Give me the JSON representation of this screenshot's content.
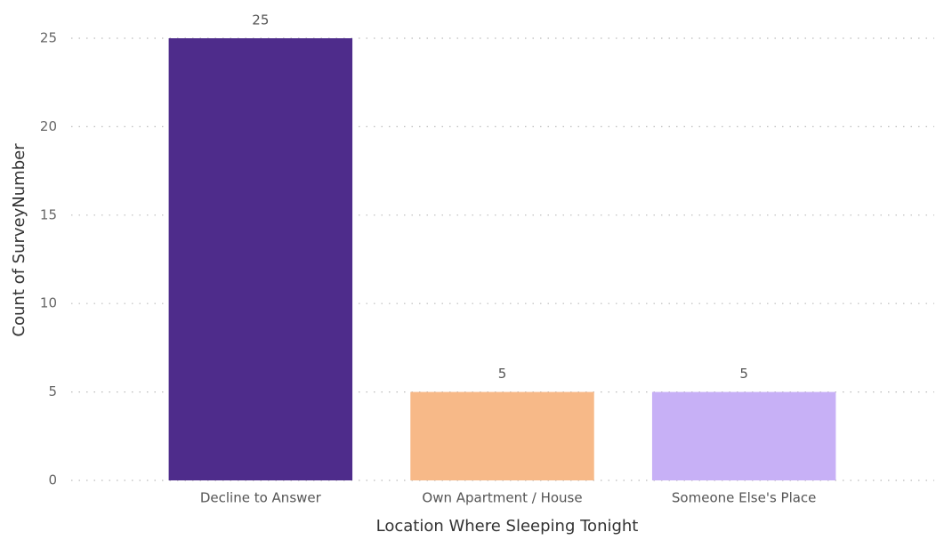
{
  "chart_data": {
    "type": "bar",
    "xlabel": "Location Where Sleeping Tonight",
    "ylabel": "Count of SurveyNumber",
    "categories": [
      "Decline to Answer",
      "Own Apartment / House",
      "Someone Else's Place"
    ],
    "values": [
      25,
      5,
      5
    ],
    "colors": [
      "#4e2c8b",
      "#f7b988",
      "#c7b0f6"
    ],
    "ylim": [
      0,
      25
    ],
    "yticks": [
      0,
      5,
      10,
      15,
      20,
      25
    ],
    "grid": true
  }
}
